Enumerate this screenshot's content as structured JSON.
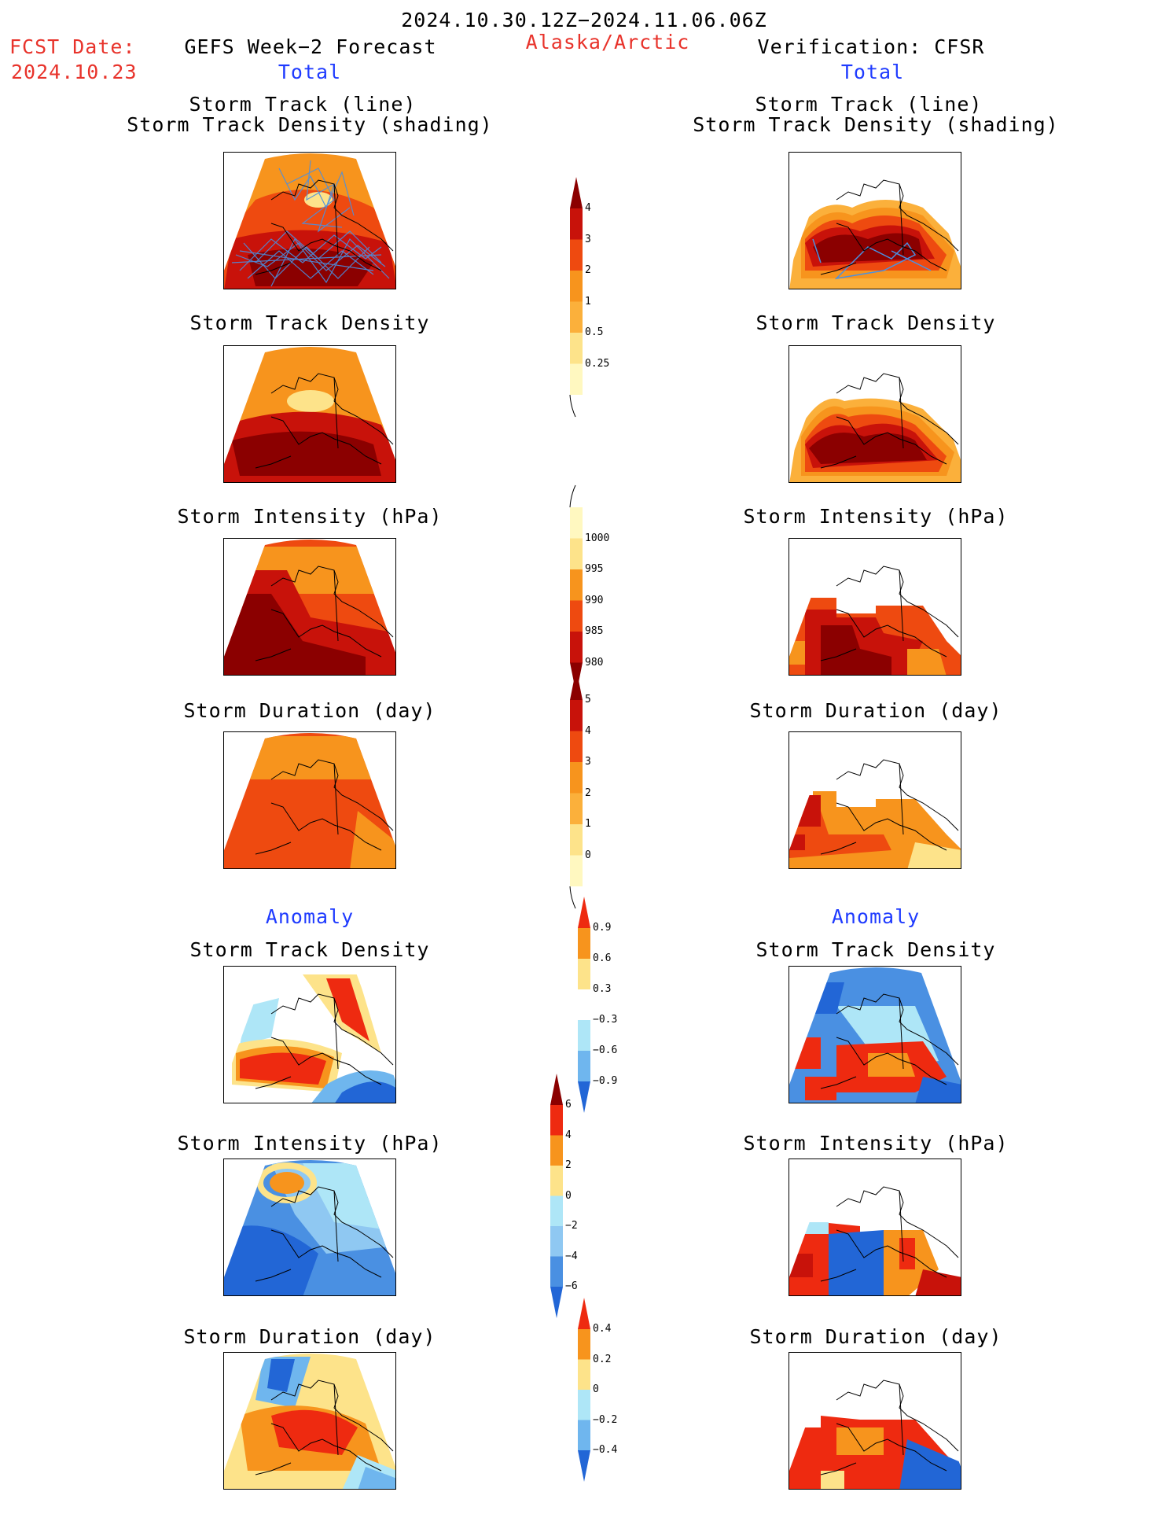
{
  "header": {
    "date_range": "2024.10.30.12Z−2024.11.06.06Z",
    "fcst_label": "FCST Date:",
    "fcst_date": "2024.10.23",
    "forecast_title": "GEFS Week−2 Forecast",
    "region": "Alaska/Arctic",
    "verification_title": "Verification: CFSR",
    "left_total": "Total",
    "right_total": "Total"
  },
  "sections": {
    "left_anomaly": "Anomaly",
    "right_anomaly": "Anomaly"
  },
  "panel_titles": {
    "track_line": "Storm Track (line)",
    "track_shading": "Storm Track Density (shading)",
    "density": "Storm Track Density",
    "intensity": "Storm Intensity (hPa)",
    "duration": "Storm Duration (day)"
  },
  "colorbars": {
    "density_total": {
      "labels": [
        "4",
        "3",
        "2",
        "1",
        "0.5",
        "0.25"
      ],
      "colors": [
        "#8b0000",
        "#c8120a",
        "#ee4a10",
        "#f7941d",
        "#fbb03b",
        "#fde38a",
        "#fff8c0"
      ]
    },
    "intensity_total": {
      "labels": [
        "1000",
        "995",
        "990",
        "985",
        "980"
      ],
      "colors": [
        "#fff8c0",
        "#fde38a",
        "#f7941d",
        "#ee4a10",
        "#c8120a",
        "#8b0000"
      ]
    },
    "duration_total": {
      "labels": [
        "5",
        "4",
        "3",
        "2",
        "1",
        "0"
      ],
      "colors": [
        "#8b0000",
        "#c8120a",
        "#ee4a10",
        "#f7941d",
        "#fbb03b",
        "#fde38a",
        "#fff8c0"
      ]
    },
    "density_anom": {
      "labels": [
        "0.9",
        "0.6",
        "0.3",
        "−0.3",
        "−0.6",
        "−0.9"
      ],
      "colors": [
        "#ee2a10",
        "#f7941d",
        "#fde38a",
        "#ffffff",
        "#aee6f7",
        "#6fb6ee",
        "#2266d6"
      ]
    },
    "intensity_anom": {
      "labels": [
        "6",
        "4",
        "2",
        "0",
        "−2",
        "−4",
        "−6"
      ],
      "colors": [
        "#8b0000",
        "#ee2a10",
        "#f7941d",
        "#fde38a",
        "#aee6f7",
        "#8fc8f2",
        "#4a90e2",
        "#2266d6"
      ]
    },
    "duration_anom": {
      "labels": [
        "0.4",
        "0.2",
        "0",
        "−0.2",
        "−0.4"
      ],
      "colors": [
        "#ee2a10",
        "#f7941d",
        "#fde38a",
        "#aee6f7",
        "#6fb6ee",
        "#2266d6"
      ]
    }
  }
}
